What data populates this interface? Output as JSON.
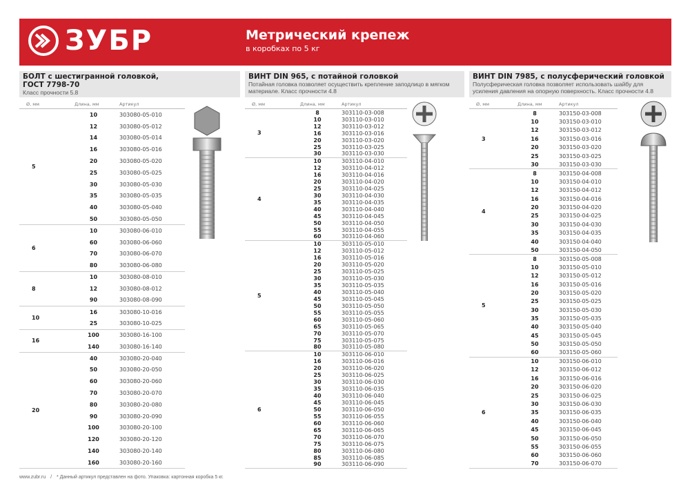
{
  "header": {
    "brand": "ЗУБР",
    "title": "Метрический крепеж",
    "subtitle": "в коробках по 5 кг",
    "brand_color": "#d0202a"
  },
  "columns_head": {
    "diameter": "Ø, мм",
    "length": "Длина, мм",
    "article": "Артикул"
  },
  "sections": [
    {
      "title": "БОЛТ с шестигранной головкой,",
      "title2": "ГОСТ 7798-70",
      "desc": "Класс прочности 5.8",
      "image": "hex-bolt",
      "groups": [
        {
          "d": "5",
          "rows": [
            [
              "10",
              "303080-05-010"
            ],
            [
              "12",
              "303080-05-012"
            ],
            [
              "14",
              "303080-05-014"
            ],
            [
              "16",
              "303080-05-016"
            ],
            [
              "20",
              "303080-05-020"
            ],
            [
              "25",
              "303080-05-025"
            ],
            [
              "30",
              "303080-05-030"
            ],
            [
              "35",
              "303080-05-035"
            ],
            [
              "40",
              "303080-05-040"
            ],
            [
              "50",
              "303080-05-050"
            ]
          ]
        },
        {
          "d": "6",
          "rows": [
            [
              "10",
              "303080-06-010"
            ],
            [
              "60",
              "303080-06-060"
            ],
            [
              "70",
              "303080-06-070"
            ],
            [
              "80",
              "303080-06-080"
            ]
          ]
        },
        {
          "d": "8",
          "rows": [
            [
              "10",
              "303080-08-010"
            ],
            [
              "12",
              "303080-08-012"
            ],
            [
              "90",
              "303080-08-090"
            ]
          ]
        },
        {
          "d": "10",
          "rows": [
            [
              "16",
              "303080-10-016"
            ],
            [
              "25",
              "303080-10-025"
            ]
          ]
        },
        {
          "d": "16",
          "rows": [
            [
              "100",
              "303080-16-100"
            ],
            [
              "140",
              "303080-16-140"
            ]
          ]
        },
        {
          "d": "20",
          "rows": [
            [
              "40",
              "303080-20-040"
            ],
            [
              "50",
              "303080-20-050"
            ],
            [
              "60",
              "303080-20-060"
            ],
            [
              "70",
              "303080-20-070"
            ],
            [
              "80",
              "303080-20-080"
            ],
            [
              "90",
              "303080-20-090"
            ],
            [
              "100",
              "303080-20-100"
            ],
            [
              "120",
              "303080-20-120"
            ],
            [
              "140",
              "303080-20-140"
            ],
            [
              "160",
              "303080-20-160"
            ]
          ]
        }
      ]
    },
    {
      "title": "ВИНТ DIN 965, с потайной головкой",
      "desc": "Потайная головка позволяет осуществить крепление заподлицо в мягком материале. Класс прочности 4.8",
      "image": "countersunk-screw",
      "groups": [
        {
          "d": "3",
          "rows": [
            [
              "8",
              "303110-03-008"
            ],
            [
              "10",
              "303110-03-010"
            ],
            [
              "12",
              "303110-03-012"
            ],
            [
              "16",
              "303110-03-016"
            ],
            [
              "20",
              "303110-03-020"
            ],
            [
              "25",
              "303110-03-025"
            ],
            [
              "30",
              "303110-03-030"
            ]
          ]
        },
        {
          "d": "4",
          "rows": [
            [
              "10",
              "303110-04-010"
            ],
            [
              "12",
              "303110-04-012"
            ],
            [
              "16",
              "303110-04-016"
            ],
            [
              "20",
              "303110-04-020"
            ],
            [
              "25",
              "303110-04-025"
            ],
            [
              "30",
              "303110-04-030"
            ],
            [
              "35",
              "303110-04-035"
            ],
            [
              "40",
              "303110-04-040"
            ],
            [
              "45",
              "303110-04-045"
            ],
            [
              "50",
              "303110-04-050"
            ],
            [
              "55",
              "303110-04-055"
            ],
            [
              "60",
              "303110-04-060"
            ]
          ]
        },
        {
          "d": "5",
          "rows": [
            [
              "10",
              "303110-05-010"
            ],
            [
              "12",
              "303110-05-012"
            ],
            [
              "16",
              "303110-05-016"
            ],
            [
              "20",
              "303110-05-020"
            ],
            [
              "25",
              "303110-05-025"
            ],
            [
              "30",
              "303110-05-030"
            ],
            [
              "35",
              "303110-05-035"
            ],
            [
              "40",
              "303110-05-040"
            ],
            [
              "45",
              "303110-05-045"
            ],
            [
              "50",
              "303110-05-050"
            ],
            [
              "55",
              "303110-05-055"
            ],
            [
              "60",
              "303110-05-060"
            ],
            [
              "65",
              "303110-05-065"
            ],
            [
              "70",
              "303110-05-070"
            ],
            [
              "75",
              "303110-05-075"
            ],
            [
              "80",
              "303110-05-080"
            ]
          ]
        },
        {
          "d": "6",
          "rows": [
            [
              "10",
              "303110-06-010"
            ],
            [
              "16",
              "303110-06-016"
            ],
            [
              "20",
              "303110-06-020"
            ],
            [
              "25",
              "303110-06-025"
            ],
            [
              "30",
              "303110-06-030"
            ],
            [
              "35",
              "303110-06-035"
            ],
            [
              "40",
              "303110-06-040"
            ],
            [
              "45",
              "303110-06-045"
            ],
            [
              "50",
              "303110-06-050"
            ],
            [
              "55",
              "303110-06-055"
            ],
            [
              "60",
              "303110-06-060"
            ],
            [
              "65",
              "303110-06-065"
            ],
            [
              "70",
              "303110-06-070"
            ],
            [
              "75",
              "303110-06-075"
            ],
            [
              "80",
              "303110-06-080"
            ],
            [
              "85",
              "303110-06-085"
            ],
            [
              "90",
              "303110-06-090"
            ]
          ]
        }
      ]
    },
    {
      "title": "ВИНТ DIN 7985, с полусферический головкой",
      "desc": "Полусферическая головка позволяет использовать шайбу для усиления давления на опорную поверхность. Класс прочности 4.8",
      "image": "pan-head-screw",
      "groups": [
        {
          "d": "3",
          "rows": [
            [
              "8",
              "303150-03-008"
            ],
            [
              "10",
              "303150-03-010"
            ],
            [
              "12",
              "303150-03-012"
            ],
            [
              "16",
              "303150-03-016"
            ],
            [
              "20",
              "303150-03-020"
            ],
            [
              "25",
              "303150-03-025"
            ],
            [
              "30",
              "303150-03-030"
            ]
          ]
        },
        {
          "d": "4",
          "rows": [
            [
              "8",
              "303150-04-008"
            ],
            [
              "10",
              "303150-04-010"
            ],
            [
              "12",
              "303150-04-012"
            ],
            [
              "16",
              "303150-04-016"
            ],
            [
              "20",
              "303150-04-020"
            ],
            [
              "25",
              "303150-04-025"
            ],
            [
              "30",
              "303150-04-030"
            ],
            [
              "35",
              "303150-04-035"
            ],
            [
              "40",
              "303150-04-040"
            ],
            [
              "50",
              "303150-04-050"
            ]
          ]
        },
        {
          "d": "5",
          "rows": [
            [
              "8",
              "303150-05-008"
            ],
            [
              "10",
              "303150-05-010"
            ],
            [
              "12",
              "303150-05-012"
            ],
            [
              "16",
              "303150-05-016"
            ],
            [
              "20",
              "303150-05-020"
            ],
            [
              "25",
              "303150-05-025"
            ],
            [
              "30",
              "303150-05-030"
            ],
            [
              "35",
              "303150-05-035"
            ],
            [
              "40",
              "303150-05-040"
            ],
            [
              "45",
              "303150-05-045"
            ],
            [
              "50",
              "303150-05-050"
            ],
            [
              "60",
              "303150-05-060"
            ]
          ]
        },
        {
          "d": "6",
          "rows": [
            [
              "10",
              "303150-06-010"
            ],
            [
              "12",
              "303150-06-012"
            ],
            [
              "16",
              "303150-06-016"
            ],
            [
              "20",
              "303150-06-020"
            ],
            [
              "25",
              "303150-06-025"
            ],
            [
              "30",
              "303150-06-030"
            ],
            [
              "35",
              "303150-06-035"
            ],
            [
              "40",
              "303150-06-040"
            ],
            [
              "45",
              "303150-06-045"
            ],
            [
              "50",
              "303150-06-050"
            ],
            [
              "55",
              "303150-06-055"
            ],
            [
              "60",
              "303150-06-060"
            ],
            [
              "70",
              "303150-06-070"
            ]
          ]
        }
      ]
    }
  ],
  "footer": {
    "site": "www.zubr.ru",
    "sep": "/",
    "note": "* Данный артикул представлен на фото. Упаковка: картонная коробка 5 кг."
  }
}
